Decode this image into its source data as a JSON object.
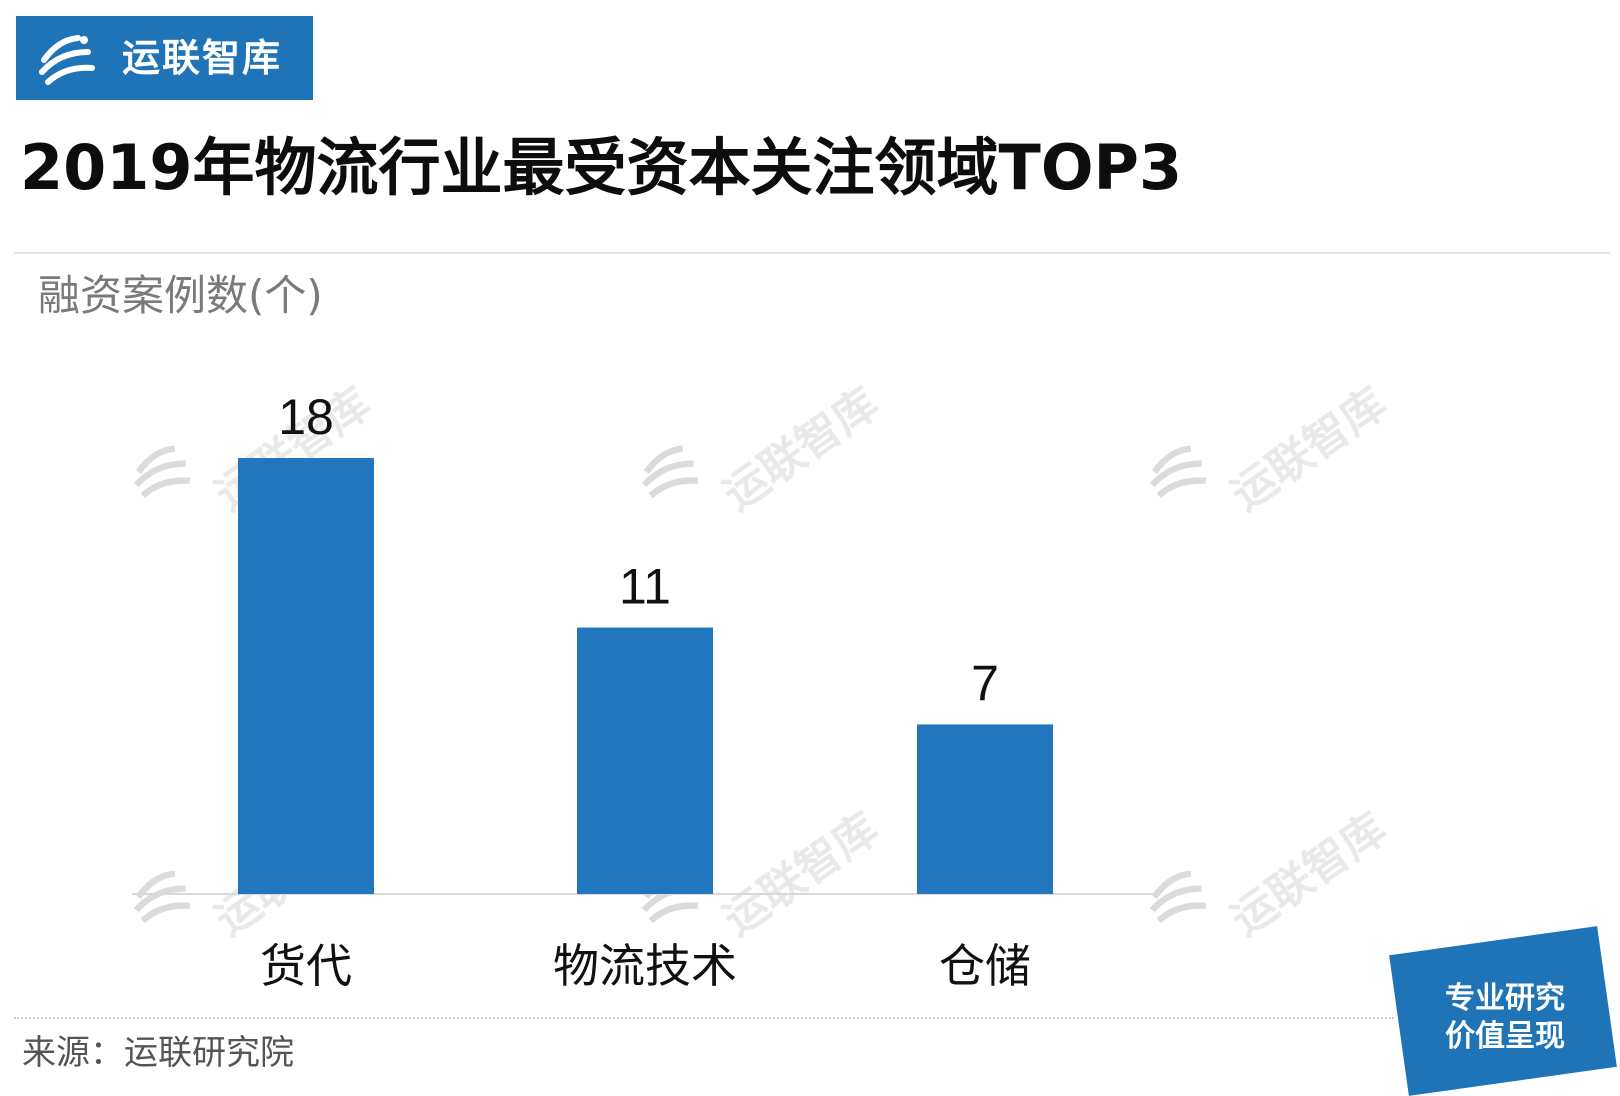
{
  "brand": {
    "name": "运联智库",
    "color": "#1f73b7",
    "icon": "yunlian-logo-icon"
  },
  "title": "2019年物流行业最受资本关注领域TOP3",
  "y_unit": "融资案例数(个)",
  "source": "来源：运联研究院",
  "badge": {
    "line1": "专业研究",
    "line2": "价值呈现"
  },
  "watermark_text": "运联智库",
  "chart_data": {
    "type": "bar",
    "categories": [
      "货代",
      "物流技术",
      "仓储"
    ],
    "values": [
      18,
      11,
      7
    ],
    "title": "2019年物流行业最受资本关注领域TOP3",
    "xlabel": "",
    "ylabel": "融资案例数(个)",
    "ylim": [
      0,
      18
    ],
    "grid": false,
    "legend": "none",
    "bar_color": "#2176bd",
    "data_labels": true
  }
}
